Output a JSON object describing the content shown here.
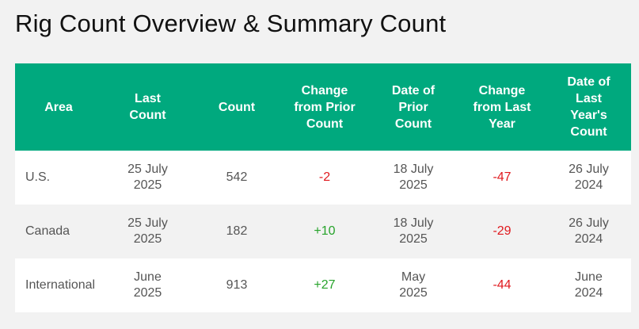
{
  "page": {
    "title": "Rig Count Overview & Summary Count"
  },
  "table": {
    "headers": {
      "area": "Area",
      "last_count": "Last Count",
      "count": "Count",
      "change_prior": "Change from Prior Count",
      "date_prior": "Date of Prior Count",
      "change_last_year": "Change from Last Year",
      "date_last_year": "Date of Last Year's Count"
    },
    "rows": [
      {
        "area": "U.S.",
        "last_count": "25 July 2025",
        "count": "542",
        "change_prior": "-2",
        "date_prior": "18 July 2025",
        "change_last_year": "-47",
        "date_last_year": "26 July 2024"
      },
      {
        "area": "Canada",
        "last_count": "25 July 2025",
        "count": "182",
        "change_prior": "+10",
        "date_prior": "18 July 2025",
        "change_last_year": "-29",
        "date_last_year": "26 July 2024"
      },
      {
        "area": "International",
        "last_count": "June 2025",
        "count": "913",
        "change_prior": "+27",
        "date_prior": "May 2025",
        "change_last_year": "-44",
        "date_last_year": "June 2024"
      }
    ]
  },
  "colors": {
    "header_bg": "#00a97e",
    "negative": "#e0191e",
    "positive": "#27a32b"
  }
}
